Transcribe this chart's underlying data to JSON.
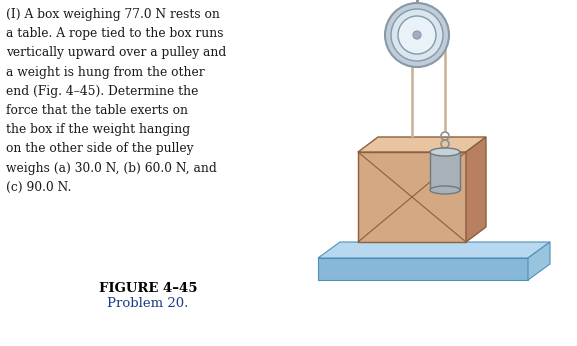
{
  "title_text": "FIGURE 4–45",
  "subtitle_text": "Problem 20.",
  "body_text": "(I) A box weighing 77.0 N rests on\na table. A rope tied to the box runs\nvertically upward over a pulley and\na weight is hung from the other\nend (Fig. 4–45). Determine the\nforce that the table exerts on\nthe box if the weight hanging\non the other side of the pulley\nweighs (a) 30.0 N, (b) 60.0 N, and\n(c) 90.0 N.",
  "bg_color": "#ffffff",
  "text_color": "#1a1a1a",
  "fig_label_color": "#000000",
  "prob_label_color": "#1a3a8a",
  "box_face": "#d4a882",
  "box_top_face": "#e8c4a0",
  "box_right_face": "#b88060",
  "box_edge": "#8b6040",
  "table_top": "#b8d8f0",
  "table_front": "#88b8d8",
  "table_right": "#98c4e0",
  "table_edge": "#5090b8",
  "pulley_outer_fill": "#c0cdd8",
  "pulley_ring1_fill": "#d8e6f0",
  "pulley_ring2_fill": "#e8f2f8",
  "pulley_center_fill": "#a0b0c0",
  "pulley_edge": "#8898a8",
  "weight_body": "#a8b0b8",
  "weight_top": "#c8d0d8",
  "weight_edge": "#707880",
  "rope_color": "#c8b090",
  "axle_color": "#909090",
  "hook_color": "#909090"
}
